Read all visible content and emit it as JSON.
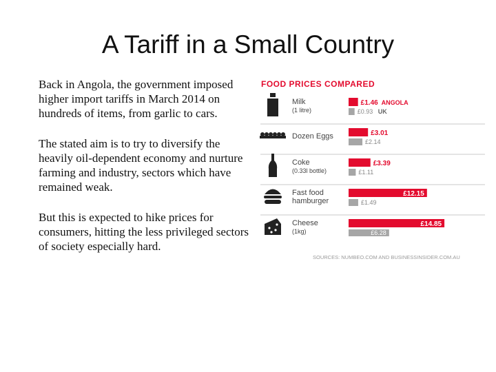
{
  "slide": {
    "title": "A Tariff in a Small Country",
    "paragraphs": [
      "Back in Angola, the government imposed higher import tariffs in March 2014 on hundreds of items, from garlic to cars.",
      "The stated aim is to try to diversify the heavily oil-dependent economy and nurture farming and industry, sectors which have remained weak.",
      "But this is expected to hike prices for consumers, hitting the less privileged sectors of society especially hard."
    ]
  },
  "chart_data": {
    "type": "bar",
    "orientation": "horizontal",
    "title": "FOOD PRICES COMPARED",
    "categories": [
      "Milk (1 litre)",
      "Dozen Eggs",
      "Coke (0.33l bottle)",
      "Fast food hamburger",
      "Cheese (1kg)"
    ],
    "category_lines": [
      [
        "Milk",
        "(1 litre)"
      ],
      [
        "Dozen Eggs"
      ],
      [
        "Coke",
        "(0.33l bottle)"
      ],
      [
        "Fast food",
        "hamburger"
      ],
      [
        "Cheese",
        "(1kg)"
      ]
    ],
    "icons": [
      "milk-bottle-icon",
      "egg-carton-icon",
      "coke-bottle-icon",
      "hamburger-icon",
      "cheese-icon"
    ],
    "series": [
      {
        "name": "ANGOLA",
        "color": "#e30b2e",
        "values": [
          1.46,
          3.01,
          3.39,
          12.15,
          14.85
        ],
        "labels": [
          "£1.46",
          "£3.01",
          "£3.39",
          "£12.15",
          "£14.85"
        ]
      },
      {
        "name": "UK",
        "color": "#a6a6a6",
        "values": [
          0.93,
          2.14,
          1.11,
          1.49,
          6.28
        ],
        "labels": [
          "£0.93",
          "£2.14",
          "£1.11",
          "£1.49",
          "£6.28"
        ]
      }
    ],
    "source": "SOURCES: NUMBEO.COM AND BUSINESSINSIDER.COM.AU",
    "colors": {
      "title": "#e30b2e",
      "divider": "#c8c8c8",
      "icon": "#222222",
      "label": "#444444"
    }
  }
}
